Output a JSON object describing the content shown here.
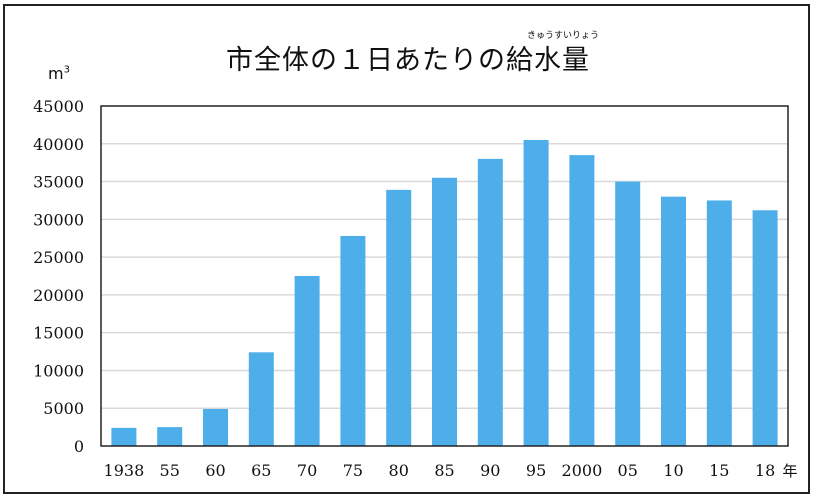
{
  "chart_data": {
    "type": "bar",
    "title": "市全体の１日あたりの給水量",
    "title_ruby": "きゅうすいりょう",
    "ylabel": "m",
    "ylabel_sup": "3",
    "xlabel": "年",
    "ylim": [
      0,
      45000
    ],
    "yticks": [
      0,
      5000,
      10000,
      15000,
      20000,
      25000,
      30000,
      35000,
      40000,
      45000
    ],
    "grid": true,
    "categories": [
      "1938",
      "55",
      "60",
      "65",
      "70",
      "75",
      "80",
      "85",
      "90",
      "95",
      "2000",
      "05",
      "10",
      "15",
      "18"
    ],
    "values": [
      2400,
      2500,
      4900,
      12400,
      22500,
      27800,
      33900,
      35500,
      38000,
      40500,
      38500,
      35000,
      33000,
      32500,
      31200
    ],
    "bar_color": "#4daee9"
  }
}
